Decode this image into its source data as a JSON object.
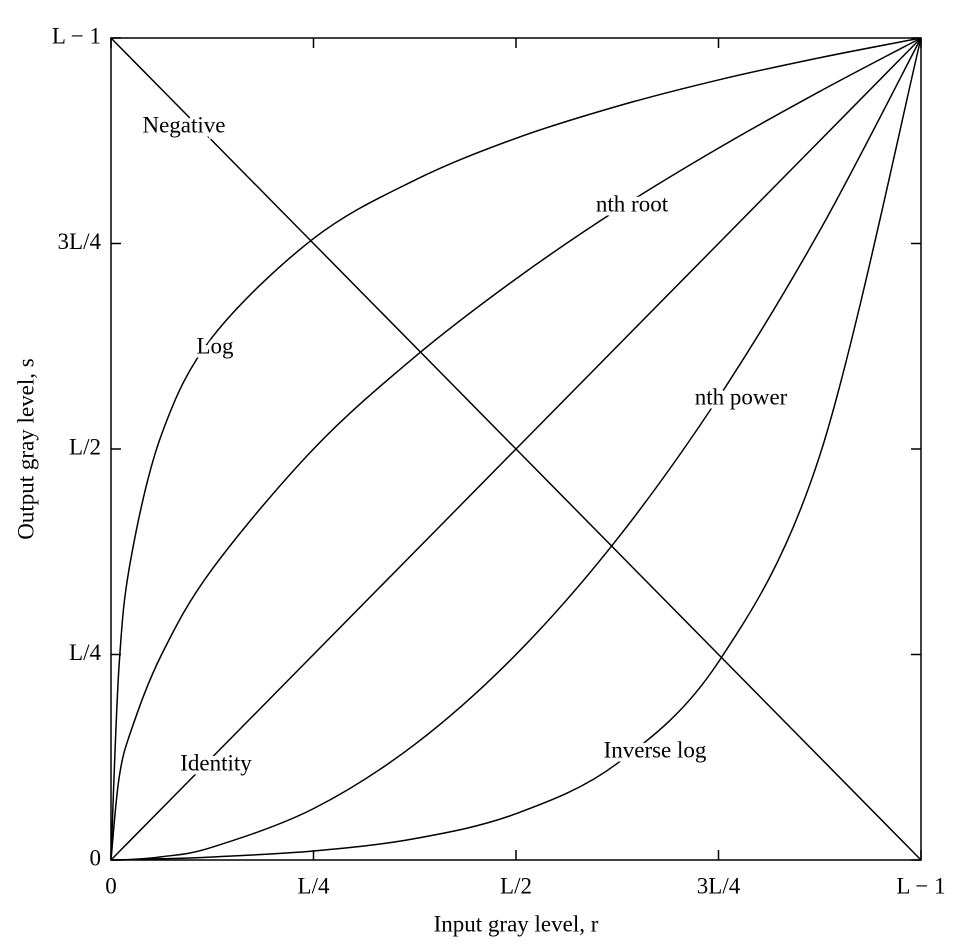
{
  "chart_data": {
    "type": "line",
    "x_label": "Input gray level, r",
    "y_label": "Output gray level, s",
    "x": [
      0,
      0.01,
      0.025,
      0.0625,
      0.125,
      0.25,
      0.375,
      0.5,
      0.625,
      0.75,
      0.875,
      1
    ],
    "series": [
      {
        "name": "Negative",
        "color": "#000000",
        "values": [
          1,
          0.99,
          0.975,
          0.9375,
          0.875,
          0.75,
          0.625,
          0.5,
          0.375,
          0.25,
          0.125,
          0
        ]
      },
      {
        "name": "Log",
        "color": "#000000",
        "values": [
          0,
          0.237,
          0.369,
          0.518,
          0.636,
          0.756,
          0.827,
          0.878,
          0.917,
          0.949,
          0.976,
          1
        ]
      },
      {
        "name": "nth root",
        "color": "#000000",
        "values": [
          0,
          0.1,
          0.158,
          0.25,
          0.354,
          0.5,
          0.612,
          0.707,
          0.791,
          0.866,
          0.935,
          1
        ]
      },
      {
        "name": "Identity",
        "color": "#000000",
        "values": [
          0,
          0.01,
          0.025,
          0.0625,
          0.125,
          0.25,
          0.375,
          0.5,
          0.625,
          0.75,
          0.875,
          1
        ]
      },
      {
        "name": "nth power",
        "color": "#000000",
        "values": [
          0,
          0.0001,
          0.000625,
          0.0039,
          0.0156,
          0.0625,
          0.1406,
          0.25,
          0.3906,
          0.5625,
          0.7656,
          1
        ]
      },
      {
        "name": "Inverse log",
        "color": "#000000",
        "values": [
          0,
          0.0002,
          0.0005,
          0.0015,
          0.0037,
          0.011,
          0.026,
          0.0563,
          0.1175,
          0.241,
          0.492,
          1
        ]
      }
    ],
    "xlim": [
      0,
      1
    ],
    "ylim": [
      0,
      1
    ],
    "xticks": [
      0,
      {
        "value": 0.25,
        "label": "L/4"
      },
      {
        "value": 0.5,
        "label": "L/2"
      },
      {
        "value": 0.75,
        "label": "3L/4"
      },
      {
        "value": 1,
        "label": "L − 1"
      }
    ],
    "yticks": [
      0,
      {
        "value": 0.25,
        "label": "L/4"
      },
      {
        "value": 0.5,
        "label": "L/2"
      },
      {
        "value": 0.75,
        "label": "3L/4"
      },
      {
        "value": 1,
        "label": "L − 1"
      }
    ],
    "grid": false
  }
}
